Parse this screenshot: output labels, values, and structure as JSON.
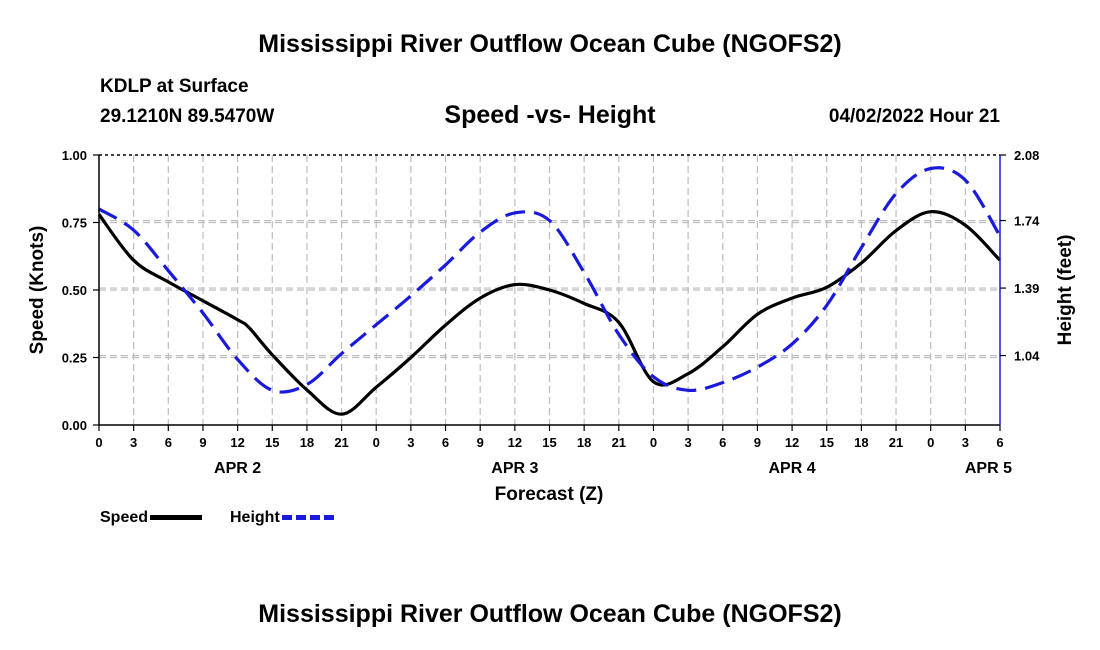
{
  "header": {
    "title": "Mississippi River Outflow Ocean Cube (NGOFS2)",
    "station": "KDLP at Surface",
    "coords": "29.1210N  89.5470W",
    "subtitle": "Speed -vs- Height",
    "datetime": "04/02/2022 Hour 21"
  },
  "footer": {
    "title": "Mississippi River Outflow Ocean Cube (NGOFS2)"
  },
  "legend": {
    "speed_label": "Speed",
    "height_label": "Height"
  },
  "colors": {
    "speed": "#000000",
    "height": "#1a1adc",
    "grid": "#bdbdbd"
  },
  "chart_data": {
    "type": "line",
    "xlabel": "Forecast (Z)",
    "ylabel": "Speed (Knots)",
    "y2label": "Height (feet)",
    "xlim": [
      0,
      78
    ],
    "ylim": [
      0,
      1
    ],
    "y2lim": [
      0.68,
      2.08
    ],
    "x_tick_values": [
      0,
      3,
      6,
      9,
      12,
      15,
      18,
      21,
      24,
      27,
      30,
      33,
      36,
      39,
      42,
      45,
      48,
      51,
      54,
      57,
      60,
      63,
      66,
      69,
      72,
      75,
      78
    ],
    "x_tick_labels": [
      "0",
      "3",
      "6",
      "9",
      "12",
      "15",
      "18",
      "21",
      "0",
      "3",
      "6",
      "9",
      "12",
      "15",
      "18",
      "21",
      "0",
      "3",
      "6",
      "9",
      "12",
      "15",
      "18",
      "21",
      "0",
      "3",
      "6"
    ],
    "y_ticks": [
      {
        "value": 0,
        "label": "0.00"
      },
      {
        "value": 0.25,
        "label": "0.25"
      },
      {
        "value": 0.5,
        "label": "0.50"
      },
      {
        "value": 0.75,
        "label": "0.75"
      },
      {
        "value": 1.0,
        "label": "1.00"
      }
    ],
    "y2_ticks": [
      {
        "value": 1.04,
        "label": "1.04"
      },
      {
        "value": 1.39,
        "label": "1.39"
      },
      {
        "value": 1.74,
        "label": "1.74"
      },
      {
        "value": 2.08,
        "label": "2.08"
      }
    ],
    "date_labels": [
      {
        "x": 12,
        "label": "APR 2"
      },
      {
        "x": 36,
        "label": "APR 3"
      },
      {
        "x": 60,
        "label": "APR 4"
      },
      {
        "x": 77,
        "label": "APR 5"
      }
    ],
    "series": [
      {
        "name": "Speed",
        "axis": "left",
        "style": "solid",
        "x": [
          0,
          3,
          6,
          9,
          12,
          13,
          15,
          18,
          21,
          24,
          27,
          30,
          33,
          36,
          39,
          42,
          45,
          48,
          51,
          54,
          57,
          60,
          63,
          66,
          69,
          72,
          75,
          78
        ],
        "values": [
          0.78,
          0.61,
          0.53,
          0.46,
          0.39,
          0.36,
          0.26,
          0.13,
          0.04,
          0.14,
          0.25,
          0.37,
          0.47,
          0.52,
          0.5,
          0.45,
          0.38,
          0.16,
          0.19,
          0.29,
          0.41,
          0.47,
          0.51,
          0.6,
          0.72,
          0.79,
          0.74,
          0.61
        ]
      },
      {
        "name": "Height",
        "axis": "right",
        "style": "dashed",
        "x": [
          0,
          3,
          6,
          9,
          12,
          15,
          18,
          21,
          24,
          27,
          30,
          33,
          36,
          39,
          42,
          45,
          48,
          51,
          54,
          57,
          60,
          63,
          66,
          69,
          72,
          75,
          78
        ],
        "values": [
          1.8,
          1.69,
          1.48,
          1.26,
          1.02,
          0.86,
          0.89,
          1.05,
          1.2,
          1.35,
          1.51,
          1.68,
          1.78,
          1.74,
          1.47,
          1.15,
          0.93,
          0.86,
          0.9,
          0.98,
          1.1,
          1.3,
          1.6,
          1.88,
          2.01,
          1.95,
          1.66
        ]
      }
    ]
  }
}
